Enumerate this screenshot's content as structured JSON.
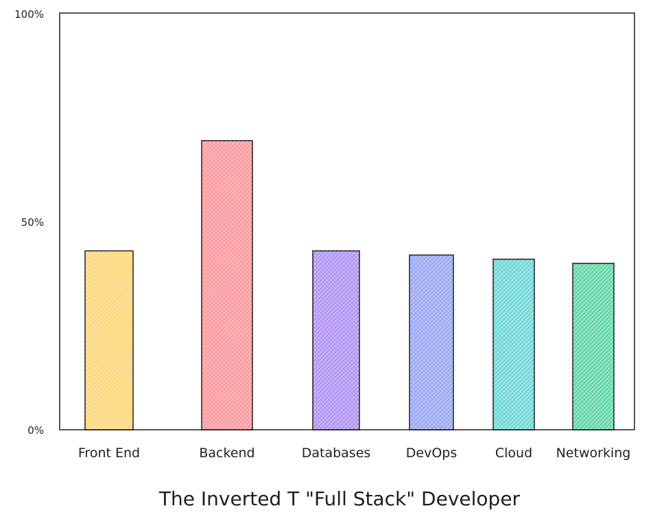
{
  "chart_data": {
    "type": "bar",
    "title": "The Inverted T \"Full Stack\" Developer",
    "xlabel": "",
    "ylabel": "",
    "ylim": [
      0,
      100
    ],
    "yticks": [
      "0%",
      "50%",
      "100%"
    ],
    "grid": false,
    "legend": null,
    "categories": [
      "Front End",
      "Backend",
      "Databases",
      "DevOps",
      "Cloud",
      "Networking"
    ],
    "values": [
      43,
      69.5,
      43,
      42,
      41,
      40
    ],
    "colors": [
      "#ffd166",
      "#ff8a8f",
      "#a685f2",
      "#8c9cf2",
      "#5ed3d3",
      "#4fd3a0"
    ]
  }
}
